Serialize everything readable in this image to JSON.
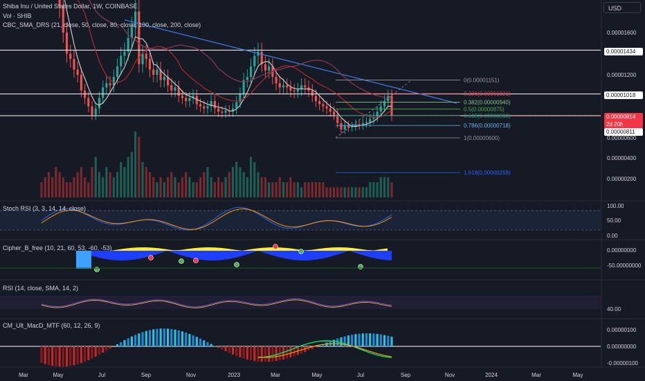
{
  "header": {
    "title": "Shiba Inu / United States Dollar, 1W, COINBASE",
    "vol_label": "Vol · SHIB",
    "sma_label": "CBC_SMA_DRS (21, close, 50, close, 80, close, 100, close, 200, close)",
    "currency": "USD"
  },
  "price_tags": {
    "level_1434": "0.00001434",
    "level_1018": "0.00001018",
    "current": "0.00000814",
    "countdown": "2d 20h",
    "level_811": "0.00000811"
  },
  "colors": {
    "background": "#161a25",
    "up": "#26a69a",
    "down": "#ef5350",
    "trendline": "#2962ff",
    "ma_red": "#b2282f",
    "ma_grey": "#c7c7c7",
    "ma_purple": "#8a3a55"
  },
  "chart_data": [
    {
      "type": "candlestick",
      "title": "Shiba Inu / United States Dollar, 1W, COINBASE",
      "y_axis_ticks": [
        "0.00001600",
        "0.00001200",
        "0.00000600",
        "0.00000400",
        "0.00000200"
      ],
      "x_axis_ticks": [
        "Mar",
        "May",
        "Jul",
        "Sep",
        "Nov",
        "2023",
        "Mar",
        "May",
        "Jul",
        "Sep",
        "Nov",
        "2024",
        "Mar",
        "May"
      ],
      "horizontal_lines": [
        1.434e-05,
        1.018e-05,
        8.11e-06
      ],
      "fibonacci": [
        {
          "level": "0",
          "price": "0.00001151"
        },
        {
          "level": "0.236",
          "price": "0.00001021"
        },
        {
          "level": "0.382",
          "price": "0.00000940"
        },
        {
          "level": "0.5",
          "price": "0.00000875"
        },
        {
          "level": "0.618",
          "price": "0.00000810"
        },
        {
          "level": "0.786",
          "price": "0.00000718"
        },
        {
          "level": "1",
          "price": "0.00000600"
        },
        {
          "level": "1.618",
          "price": "0.00000259"
        }
      ],
      "close": [
        2.4e-05,
        2.35e-05,
        2.25e-05,
        2.15e-05,
        2.05e-05,
        1.85e-05,
        1.6e-05,
        1.4e-05,
        1.35e-05,
        1.25e-05,
        1.2e-05,
        1.05e-05,
        9.8e-06,
        9e-06,
        8.2e-06,
        8.8e-06,
        9.8e-06,
        1.08e-05,
        1.12e-05,
        1.1e-05,
        1.18e-05,
        1.28e-05,
        1.38e-05,
        1.42e-05,
        1.55e-05,
        1.65e-05,
        1.8e-05,
        1.3e-05,
        1.4e-05,
        1.35e-05,
        1.25e-05,
        1.2e-05,
        1.25e-05,
        1.15e-05,
        1.18e-05,
        1.1e-05,
        1.05e-05,
        1.08e-05,
        1e-05,
        9.8e-06,
        9.5e-06,
        9.8e-06,
        1e-05,
        9.2e-06,
        9e-06,
        8.8e-06,
        9e-06,
        9.5e-06,
        8.8e-06,
        8.5e-06,
        8.4e-06,
        8.6e-06,
        8.5e-06,
        8.8e-06,
        9.4e-06,
        1.02e-05,
        1.15e-05,
        1.18e-05,
        1.28e-05,
        1.38e-05,
        1.42e-05,
        1.3e-05,
        1.24e-05,
        1.28e-05,
        1.18e-05,
        1.12e-05,
        1.08e-05,
        1.1e-05,
        1.08e-05,
        1.05e-05,
        1.04e-05,
        1.06e-05,
        1.1e-05,
        1.08e-05,
        1.05e-05,
        1e-05,
        9.5e-06,
        9.2e-06,
        9e-06,
        8.8e-06,
        8.5e-06,
        8.2e-06,
        7.4e-06,
        6.8e-06,
        7.2e-06,
        7e-06,
        7.1e-06,
        7.3e-06,
        7.2e-06,
        7.4e-06,
        7.5e-06,
        7.8e-06,
        8e-06,
        8.5e-06,
        9e-06,
        9.5e-06,
        1e-05,
        8.1e-06
      ],
      "open": [
        2.45e-05,
        2.4e-05,
        2.35e-05,
        2.25e-05,
        2.15e-05,
        2.05e-05,
        1.85e-05,
        1.6e-05,
        1.4e-05,
        1.35e-05,
        1.25e-05,
        1.2e-05,
        1.05e-05,
        9.8e-06,
        9e-06,
        8.2e-06,
        8.8e-06,
        9.8e-06,
        1.08e-05,
        1.12e-05,
        1.1e-05,
        1.18e-05,
        1.28e-05,
        1.38e-05,
        1.42e-05,
        1.55e-05,
        1.65e-05,
        1.8e-05,
        1.3e-05,
        1.4e-05,
        1.35e-05,
        1.25e-05,
        1.2e-05,
        1.25e-05,
        1.15e-05,
        1.18e-05,
        1.1e-05,
        1.05e-05,
        1.08e-05,
        1e-05,
        9.8e-06,
        9.5e-06,
        9.8e-06,
        1e-05,
        9.2e-06,
        9e-06,
        8.8e-06,
        9e-06,
        9.5e-06,
        8.8e-06,
        8.5e-06,
        8.4e-06,
        8.6e-06,
        8.5e-06,
        8.8e-06,
        9.4e-06,
        1.02e-05,
        1.15e-05,
        1.18e-05,
        1.28e-05,
        1.38e-05,
        1.42e-05,
        1.3e-05,
        1.24e-05,
        1.28e-05,
        1.18e-05,
        1.12e-05,
        1.08e-05,
        1.1e-05,
        1.08e-05,
        1.05e-05,
        1.04e-05,
        1.06e-05,
        1.1e-05,
        1.08e-05,
        1.05e-05,
        1e-05,
        9.5e-06,
        9.2e-06,
        9e-06,
        8.8e-06,
        8.5e-06,
        8.2e-06,
        7.4e-06,
        6.8e-06,
        7.2e-06,
        7e-06,
        7.1e-06,
        7.3e-06,
        7.2e-06,
        7.4e-06,
        7.5e-06,
        7.8e-06,
        8e-06,
        8.5e-06,
        9e-06,
        9.5e-06,
        1e-05
      ]
    },
    {
      "type": "bar",
      "name": "Vol · SHIB",
      "values": [
        3,
        4,
        5,
        4,
        6,
        5,
        4,
        3,
        3,
        4,
        5,
        6,
        4,
        3,
        6,
        8,
        5,
        4,
        6,
        5,
        4,
        5,
        7,
        6,
        8,
        9,
        13,
        12,
        7,
        6,
        5,
        4,
        3,
        4,
        3,
        4,
        5,
        4,
        3,
        4,
        5,
        4,
        3,
        3,
        4,
        5,
        6,
        4,
        3,
        4,
        3,
        4,
        5,
        6,
        7,
        6,
        5,
        4,
        8,
        7,
        5,
        4,
        4,
        3,
        3,
        3,
        4,
        3,
        3,
        4,
        3,
        3,
        2,
        3,
        3,
        3,
        3,
        3,
        3,
        2,
        2,
        2,
        2,
        2,
        2,
        2,
        2,
        2,
        2,
        2,
        2,
        3,
        3,
        3,
        4,
        4,
        4,
        3
      ]
    },
    {
      "type": "line",
      "title": "Stoch RSI (3, 3, 14, 14, close)",
      "y_axis_ticks": [
        "100.00",
        "50.00",
        "0.00"
      ]
    },
    {
      "type": "area",
      "title": "Cipher_B_free (10, 21, 60, 53, -60, -53)",
      "y_axis_ticks": [
        "0.00000000",
        "-50.00000000"
      ]
    },
    {
      "type": "line",
      "title": "RSI (14, close, SMA, 14, 2)",
      "y_axis_ticks": [
        "40.00"
      ]
    },
    {
      "type": "bar",
      "title": "CM_Ult_MacD_MTF (60, 12, 26, 9)",
      "y_axis_ticks": [
        "0.00000100",
        "0.00000000",
        "-0.00000100"
      ]
    }
  ],
  "panes": {
    "stoch_label": "Stoch RSI (3, 3, 14, 14, close)",
    "cipher_label": "Cipher_B_free (10, 21, 60, 53, -60, -53)",
    "rsi_label": "RSI (14, close, SMA, 14, 2)",
    "macd_label": "CM_Ult_MacD_MTF (60, 12, 26, 9)"
  }
}
